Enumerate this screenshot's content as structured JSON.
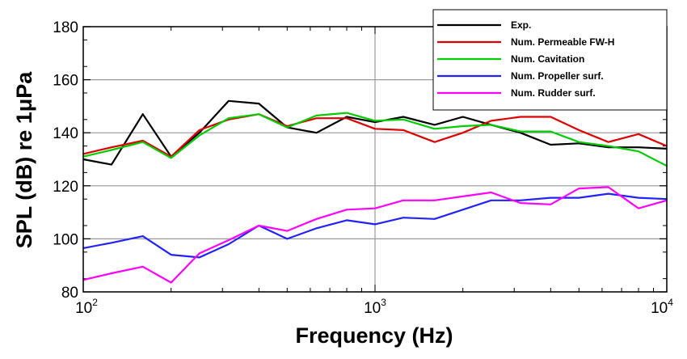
{
  "chart_data": {
    "type": "line",
    "title": "",
    "xlabel": "Frequency (Hz)",
    "ylabel": "SPL (dB) re 1μPa",
    "x_scale": "log",
    "xlim": [
      100,
      10000
    ],
    "ylim": [
      80,
      180
    ],
    "x_ticks": [
      {
        "value": 100,
        "base": "10",
        "exp": "2"
      },
      {
        "value": 1000,
        "base": "10",
        "exp": "3"
      },
      {
        "value": 10000,
        "base": "10",
        "exp": "4"
      }
    ],
    "y_ticks": [
      "80",
      "100",
      "120",
      "140",
      "160",
      "180"
    ],
    "grid": true,
    "legend_position": "top-right",
    "series": [
      {
        "name": "Exp.",
        "color": "#000000",
        "x": [
          100,
          125,
          160,
          200,
          250,
          315,
          400,
          500,
          630,
          800,
          1000,
          1250,
          1600,
          2000,
          2500,
          3150,
          4000,
          5000,
          6300,
          8000,
          10000
        ],
        "y": [
          130,
          128,
          147,
          131,
          140,
          152,
          151,
          142,
          140,
          146,
          144,
          146,
          143,
          146,
          143,
          140,
          135.5,
          136,
          134.5,
          134.5,
          134
        ]
      },
      {
        "name": "Num. Permeable FW-H",
        "color": "#dd0000",
        "x": [
          100,
          125,
          160,
          200,
          250,
          315,
          400,
          500,
          630,
          800,
          1000,
          1250,
          1600,
          2000,
          2500,
          3150,
          4000,
          5000,
          6300,
          8000,
          10000
        ],
        "y": [
          132,
          134.5,
          137,
          131,
          141,
          145,
          147,
          142.5,
          145.5,
          145.5,
          141.5,
          141,
          136.5,
          140,
          144.5,
          146,
          146,
          141,
          136.5,
          139.5,
          135
        ]
      },
      {
        "name": "Num. Cavitation",
        "color": "#00cc00",
        "x": [
          100,
          125,
          160,
          200,
          250,
          315,
          400,
          500,
          630,
          800,
          1000,
          1250,
          1600,
          2000,
          2500,
          3150,
          4000,
          5000,
          6300,
          8000,
          10000
        ],
        "y": [
          131,
          133.5,
          136.5,
          130.5,
          139,
          145.5,
          147,
          142,
          146.5,
          147.5,
          144.5,
          145,
          141.5,
          142.5,
          143,
          140.5,
          140.5,
          136.5,
          135,
          133,
          127.5
        ]
      },
      {
        "name": "Num. Propeller surf.",
        "color": "#2222ff",
        "x": [
          100,
          125,
          160,
          200,
          250,
          315,
          400,
          500,
          630,
          800,
          1000,
          1250,
          1600,
          2000,
          2500,
          3150,
          4000,
          5000,
          6300,
          8000,
          10000
        ],
        "y": [
          96.5,
          98.5,
          101,
          94,
          93,
          98,
          105,
          100,
          104,
          107,
          105.5,
          108,
          107.5,
          111,
          114.5,
          114.5,
          115.5,
          115.5,
          117,
          115.5,
          115
        ]
      },
      {
        "name": "Num. Rudder surf.",
        "color": "#ff00ff",
        "x": [
          100,
          125,
          160,
          200,
          250,
          315,
          400,
          500,
          630,
          800,
          1000,
          1250,
          1600,
          2000,
          2500,
          3150,
          4000,
          5000,
          6300,
          8000,
          10000
        ],
        "y": [
          84.5,
          87,
          89.5,
          83.5,
          94.5,
          99.5,
          105,
          103,
          107.5,
          111,
          111.5,
          114.5,
          114.5,
          116,
          117.5,
          113.5,
          113,
          119,
          119.5,
          111.5,
          114.5
        ]
      }
    ]
  }
}
